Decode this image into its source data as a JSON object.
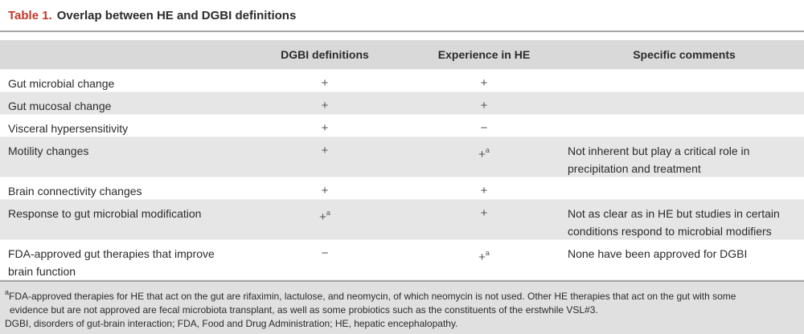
{
  "title": {
    "number": "Table 1.",
    "text": "Overlap between HE and DGBI definitions"
  },
  "headers": {
    "col1": "",
    "col2": "DGBI definitions",
    "col3": "Experience in HE",
    "col4": "Specific comments"
  },
  "rows": [
    {
      "label": "Gut microbial change",
      "dgbi": "+",
      "dgbi_sup": "",
      "he": "+",
      "he_sup": "",
      "comment": ""
    },
    {
      "label": "Gut mucosal change",
      "dgbi": "+",
      "dgbi_sup": "",
      "he": "+",
      "he_sup": "",
      "comment": ""
    },
    {
      "label": "Visceral hypersensitivity",
      "dgbi": "+",
      "dgbi_sup": "",
      "he": "−",
      "he_sup": "",
      "comment": ""
    },
    {
      "label": "Motility changes",
      "dgbi": "+",
      "dgbi_sup": "",
      "he": "+",
      "he_sup": "a",
      "comment_line1": "Not inherent but play a critical role in",
      "comment_line2": "precipitation and treatment"
    },
    {
      "label": "Brain connectivity changes",
      "dgbi": "+",
      "dgbi_sup": "",
      "he": "+",
      "he_sup": "",
      "comment": ""
    },
    {
      "label": "Response to gut microbial modification",
      "dgbi": "+",
      "dgbi_sup": "a",
      "he": "+",
      "he_sup": "",
      "comment_line1": "Not as clear as in HE but studies in certain",
      "comment_line2": "conditions respond to microbial modifiers"
    },
    {
      "label_line1": "FDA-approved gut therapies that improve",
      "label_line2": "brain function",
      "dgbi": "−",
      "dgbi_sup": "",
      "he": "+",
      "he_sup": "a",
      "comment": "None have been approved for DGBI"
    }
  ],
  "footnotes": {
    "a_mark": "a",
    "a_line1": "FDA-approved therapies for HE that act on the gut are rifaximin, lactulose, and neomycin, of which neomycin is not used. Other HE therapies that act on the gut with some",
    "a_line2": "evidence but are not approved are fecal microbiota transplant, as well as some probiotics such as the constituents of the erstwhile VSL#3.",
    "abbrev": "DGBI, disorders of gut-brain interaction; FDA, Food and Drug Administration; HE, hepatic encephalopathy."
  }
}
